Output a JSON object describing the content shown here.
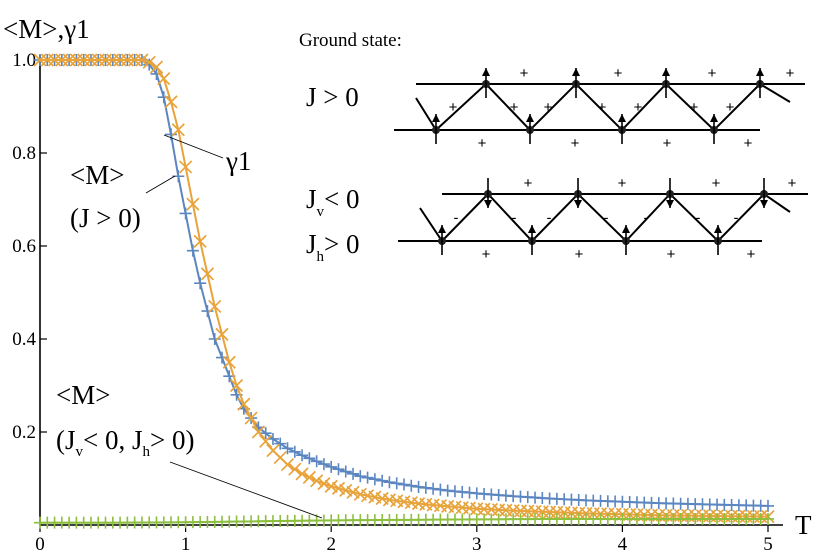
{
  "chart_data": {
    "type": "line",
    "ylabel": "<M>,γ1",
    "xlabel": "T",
    "xlim": [
      0,
      5.2
    ],
    "ylim": [
      0,
      1.0
    ],
    "x_ticks": [
      "0",
      "1",
      "2",
      "3",
      "4",
      "5"
    ],
    "y_ticks": [
      "0.2",
      "0.4",
      "0.6",
      "0.8",
      "1.0"
    ],
    "series": [
      {
        "name": "<M> (J > 0)",
        "color": "#5b86c0",
        "marker": "plus",
        "points": [
          [
            0,
            1
          ],
          [
            0.2,
            1
          ],
          [
            0.4,
            1
          ],
          [
            0.6,
            1
          ],
          [
            0.7,
            1
          ],
          [
            0.75,
            0.99
          ],
          [
            0.8,
            0.97
          ],
          [
            0.85,
            0.92
          ],
          [
            0.9,
            0.84
          ],
          [
            0.95,
            0.75
          ],
          [
            1.0,
            0.67
          ],
          [
            1.05,
            0.59
          ],
          [
            1.1,
            0.52
          ],
          [
            1.15,
            0.46
          ],
          [
            1.2,
            0.4
          ],
          [
            1.25,
            0.36
          ],
          [
            1.3,
            0.32
          ],
          [
            1.35,
            0.28
          ],
          [
            1.4,
            0.25
          ],
          [
            1.5,
            0.21
          ],
          [
            1.6,
            0.185
          ],
          [
            1.7,
            0.165
          ],
          [
            1.8,
            0.15
          ],
          [
            1.9,
            0.137
          ],
          [
            2.0,
            0.125
          ],
          [
            2.2,
            0.105
          ],
          [
            2.4,
            0.092
          ],
          [
            2.6,
            0.082
          ],
          [
            2.8,
            0.074
          ],
          [
            3.0,
            0.068
          ],
          [
            3.25,
            0.062
          ],
          [
            3.5,
            0.057
          ],
          [
            3.75,
            0.053
          ],
          [
            4.0,
            0.05
          ],
          [
            4.25,
            0.047
          ],
          [
            4.5,
            0.045
          ],
          [
            4.75,
            0.043
          ],
          [
            5.0,
            0.041
          ]
        ]
      },
      {
        "name": "γ1",
        "color": "#e8a33a",
        "marker": "cross",
        "points": [
          [
            0,
            1
          ],
          [
            0.2,
            1
          ],
          [
            0.4,
            1
          ],
          [
            0.6,
            1
          ],
          [
            0.7,
            1
          ],
          [
            0.75,
            0.995
          ],
          [
            0.8,
            0.985
          ],
          [
            0.85,
            0.96
          ],
          [
            0.9,
            0.91
          ],
          [
            0.95,
            0.85
          ],
          [
            1.0,
            0.77
          ],
          [
            1.05,
            0.69
          ],
          [
            1.1,
            0.61
          ],
          [
            1.15,
            0.54
          ],
          [
            1.2,
            0.47
          ],
          [
            1.25,
            0.41
          ],
          [
            1.3,
            0.35
          ],
          [
            1.35,
            0.3
          ],
          [
            1.4,
            0.26
          ],
          [
            1.5,
            0.2
          ],
          [
            1.6,
            0.16
          ],
          [
            1.7,
            0.13
          ],
          [
            1.8,
            0.11
          ],
          [
            1.9,
            0.095
          ],
          [
            2.0,
            0.083
          ],
          [
            2.2,
            0.066
          ],
          [
            2.4,
            0.054
          ],
          [
            2.6,
            0.046
          ],
          [
            2.8,
            0.04
          ],
          [
            3.0,
            0.035
          ],
          [
            3.25,
            0.031
          ],
          [
            3.5,
            0.028
          ],
          [
            3.75,
            0.025
          ],
          [
            4.0,
            0.023
          ],
          [
            4.25,
            0.021
          ],
          [
            4.5,
            0.02
          ],
          [
            4.75,
            0.019
          ],
          [
            5.0,
            0.018
          ]
        ]
      },
      {
        "name": "<M> (Jv < 0, Jh > 0)",
        "color": "#8cbf3f",
        "marker": "plus",
        "points": [
          [
            0,
            0.005
          ],
          [
            0.5,
            0.005
          ],
          [
            1.0,
            0.006
          ],
          [
            1.5,
            0.008
          ],
          [
            2.0,
            0.01
          ],
          [
            2.5,
            0.011
          ],
          [
            3.0,
            0.012
          ],
          [
            3.5,
            0.013
          ],
          [
            4.0,
            0.013
          ],
          [
            4.5,
            0.013
          ],
          [
            5.0,
            0.013
          ]
        ]
      }
    ],
    "annotations": {
      "m_label": "<M>",
      "j_pos_label": "(J > 0)",
      "gamma_label": "γ1",
      "m_label2": "<M>",
      "green_label_open": "(J",
      "green_sub_v": "v",
      "green_label_mid": "< 0, J",
      "green_sub_h": "h",
      "green_label_close": "> 0)"
    }
  },
  "inset": {
    "title": "Ground state:",
    "top_label": "J > 0",
    "bottom_label1_main": "J",
    "bottom_label1_sub": "v",
    "bottom_label1_rest": "< 0",
    "bottom_label2_main": "J",
    "bottom_label2_sub": "h",
    "bottom_label2_rest": "> 0",
    "plus": "+",
    "minus": "-"
  }
}
